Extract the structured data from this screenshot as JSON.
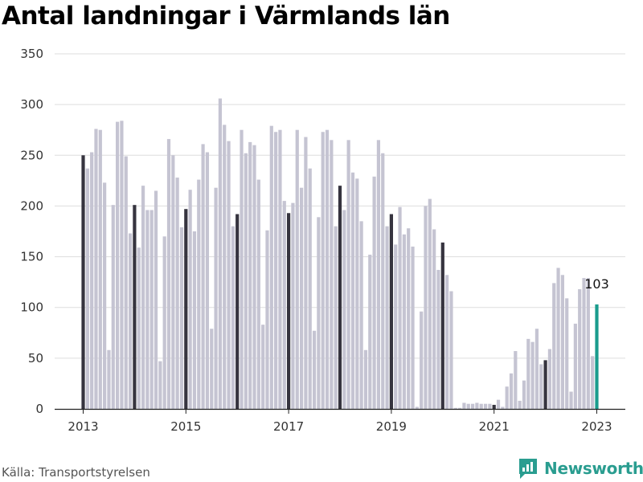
{
  "title": "Antal landningar i Värmlands län",
  "source": "Källa: Transportstyrelsen",
  "brand": {
    "name": "Newsworthy",
    "icon": "newsworthy-logo-icon"
  },
  "colors": {
    "bar": "#c5c4d2",
    "january": "#36343f",
    "latest": "#1a9c8d",
    "grid": "#dddddd",
    "brand": "#2a9d90"
  },
  "chart_data": {
    "type": "bar",
    "title": "Antal landningar i Värmlands län",
    "xlabel": "",
    "ylabel": "",
    "ylim": [
      0,
      350
    ],
    "yticks": [
      0,
      50,
      100,
      150,
      200,
      250,
      300,
      350
    ],
    "grid": true,
    "xtick_labels": [
      {
        "label": "2013",
        "index": 0
      },
      {
        "label": "2015",
        "index": 24
      },
      {
        "label": "2017",
        "index": 48
      },
      {
        "label": "2019",
        "index": 72
      },
      {
        "label": "2021",
        "index": 96
      },
      {
        "label": "2023",
        "index": 120
      }
    ],
    "x_start": "2013-01",
    "interval": "month",
    "values": [
      250,
      237,
      253,
      276,
      275,
      223,
      58,
      201,
      283,
      284,
      249,
      173,
      201,
      159,
      220,
      196,
      196,
      215,
      47,
      170,
      266,
      250,
      228,
      179,
      197,
      216,
      175,
      226,
      261,
      253,
      79,
      218,
      306,
      280,
      264,
      180,
      192,
      275,
      252,
      263,
      260,
      226,
      83,
      176,
      279,
      273,
      275,
      205,
      193,
      203,
      275,
      218,
      268,
      237,
      77,
      189,
      273,
      275,
      265,
      180,
      220,
      196,
      265,
      233,
      227,
      185,
      58,
      152,
      229,
      265,
      252,
      180,
      192,
      162,
      199,
      172,
      178,
      160,
      2,
      96,
      200,
      207,
      177,
      137,
      164,
      132,
      116,
      1,
      1,
      6,
      5,
      5,
      6,
      5,
      5,
      5,
      4,
      9,
      2,
      22,
      35,
      57,
      8,
      28,
      69,
      66,
      79,
      44,
      48,
      59,
      124,
      139,
      132,
      109,
      17,
      84,
      118,
      129,
      129,
      52,
      103
    ],
    "highlight_january": true,
    "annotation": {
      "index": 120,
      "text": "103"
    }
  }
}
